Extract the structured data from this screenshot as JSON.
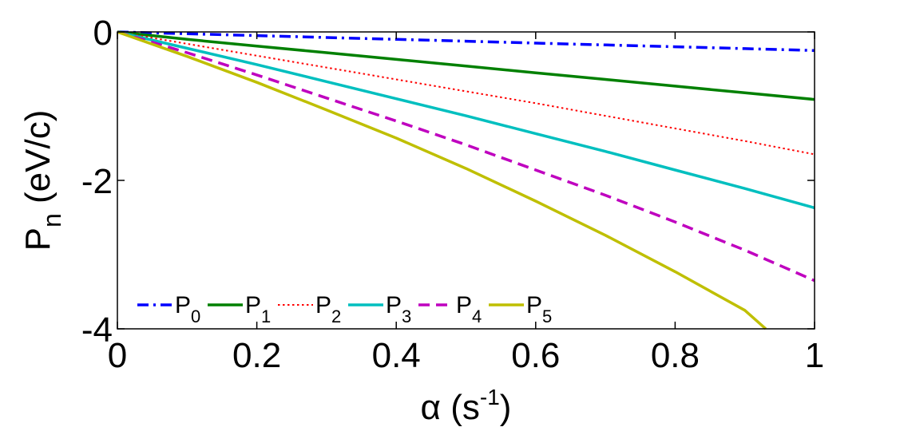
{
  "chart_data": {
    "type": "line",
    "xlabel": {
      "symbol": "α",
      "open": " (s",
      "sup": "-1",
      "close": ")"
    },
    "ylabel": {
      "main": "P",
      "sub": "n",
      "rest": " (eV/c)"
    },
    "xlim": [
      0,
      1
    ],
    "ylim": [
      -4,
      0
    ],
    "xticks": [
      0,
      0.2,
      0.4,
      0.6,
      0.8,
      1
    ],
    "xtick_labels": [
      "0",
      "0.2",
      "0.4",
      "0.6",
      "0.8",
      "1"
    ],
    "yticks": [
      0,
      -2,
      -4
    ],
    "ytick_labels": [
      "0",
      "-2",
      "-4"
    ],
    "grid": false,
    "legend_placement": "bottom-left",
    "series": [
      {
        "name": "P",
        "sub": "0",
        "color": "#0000ff",
        "dash": "dashdot",
        "x": [
          0,
          0.1,
          0.2,
          0.3,
          0.4,
          0.5,
          0.6,
          0.7,
          0.8,
          0.9,
          1.0
        ],
        "y": [
          0,
          -0.025,
          -0.05,
          -0.075,
          -0.1,
          -0.125,
          -0.15,
          -0.175,
          -0.2,
          -0.225,
          -0.25
        ]
      },
      {
        "name": "P",
        "sub": "1",
        "color": "#008000",
        "dash": "solid",
        "x": [
          0,
          0.1,
          0.2,
          0.3,
          0.4,
          0.5,
          0.6,
          0.7,
          0.8,
          0.9,
          1.0
        ],
        "y": [
          0,
          -0.1,
          -0.19,
          -0.28,
          -0.37,
          -0.46,
          -0.55,
          -0.64,
          -0.73,
          -0.82,
          -0.91
        ]
      },
      {
        "name": "P",
        "sub": "2",
        "color": "#ff0000",
        "dash": "dotted",
        "x": [
          0,
          0.1,
          0.2,
          0.3,
          0.4,
          0.5,
          0.6,
          0.7,
          0.8,
          0.9,
          1.0
        ],
        "y": [
          0,
          -0.16,
          -0.32,
          -0.48,
          -0.64,
          -0.8,
          -0.96,
          -1.13,
          -1.3,
          -1.47,
          -1.65
        ]
      },
      {
        "name": "P",
        "sub": "3",
        "color": "#00bfbf",
        "dash": "solid",
        "x": [
          0,
          0.1,
          0.2,
          0.3,
          0.4,
          0.5,
          0.6,
          0.7,
          0.8,
          0.9,
          1.0
        ],
        "y": [
          0,
          -0.22,
          -0.44,
          -0.67,
          -0.9,
          -1.13,
          -1.37,
          -1.61,
          -1.86,
          -2.11,
          -2.37
        ]
      },
      {
        "name": "P",
        "sub": "4",
        "color": "#bf00bf",
        "dash": "dashed",
        "x": [
          0,
          0.1,
          0.2,
          0.3,
          0.4,
          0.5,
          0.6,
          0.7,
          0.8,
          0.9,
          1.0
        ],
        "y": [
          0,
          -0.28,
          -0.58,
          -0.89,
          -1.2,
          -1.52,
          -1.86,
          -2.2,
          -2.56,
          -2.94,
          -3.35
        ]
      },
      {
        "name": "P",
        "sub": "5",
        "color": "#bfbf00",
        "dash": "solid",
        "x": [
          0,
          0.1,
          0.2,
          0.3,
          0.4,
          0.5,
          0.6,
          0.7,
          0.8,
          0.9,
          0.93
        ],
        "y": [
          0,
          -0.33,
          -0.68,
          -1.05,
          -1.43,
          -1.84,
          -2.28,
          -2.74,
          -3.23,
          -3.75,
          -4.0
        ]
      }
    ]
  }
}
